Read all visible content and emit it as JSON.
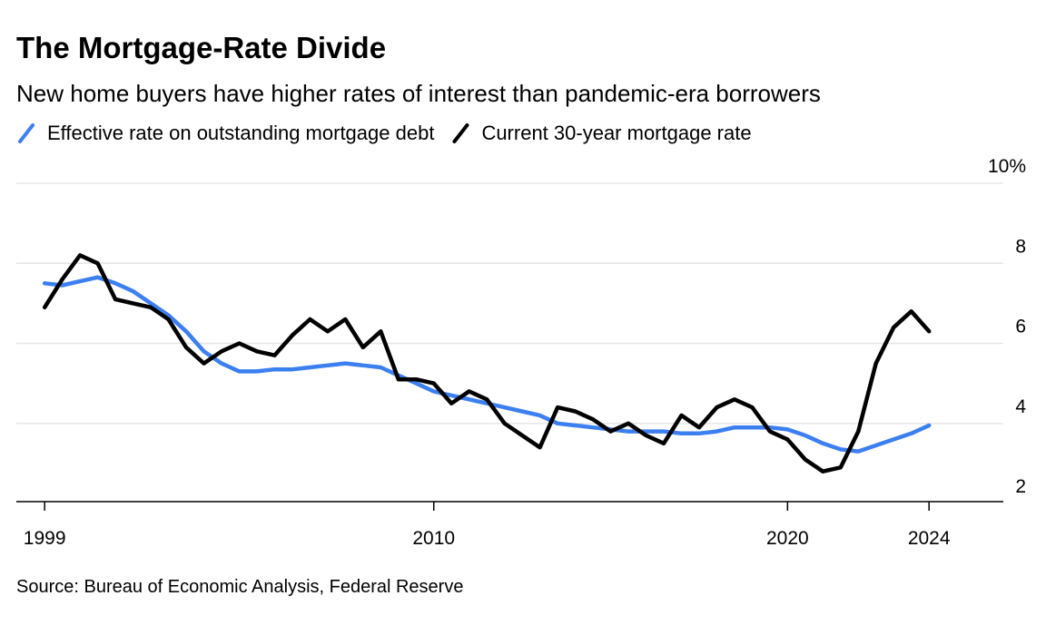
{
  "chart_data": {
    "type": "line",
    "title": "The Mortgage-Rate Divide",
    "subtitle": "New home buyers have higher rates of interest than pandemic-era borrowers",
    "source": "Source: Bureau of Economic Analysis, Federal Reserve",
    "x": [
      1999,
      1999.5,
      2000,
      2000.5,
      2001,
      2001.5,
      2002,
      2002.5,
      2003,
      2003.5,
      2004,
      2004.5,
      2005,
      2005.5,
      2006,
      2006.5,
      2007,
      2007.5,
      2008,
      2008.5,
      2009,
      2009.5,
      2010,
      2010.5,
      2011,
      2011.5,
      2012,
      2012.5,
      2013,
      2013.5,
      2014,
      2014.5,
      2015,
      2015.5,
      2016,
      2016.5,
      2017,
      2017.5,
      2018,
      2018.5,
      2019,
      2019.5,
      2020,
      2020.5,
      2021,
      2021.5,
      2022,
      2022.5,
      2023,
      2023.5,
      2024
    ],
    "series": [
      {
        "name": "Effective rate on outstanding mortgage debt",
        "color": "#3b7ff0",
        "values": [
          7.5,
          7.45,
          7.55,
          7.65,
          7.5,
          7.3,
          7.0,
          6.7,
          6.3,
          5.8,
          5.5,
          5.3,
          5.3,
          5.35,
          5.35,
          5.4,
          5.45,
          5.5,
          5.45,
          5.4,
          5.2,
          5.0,
          4.8,
          4.7,
          4.6,
          4.5,
          4.4,
          4.3,
          4.2,
          4.0,
          3.95,
          3.9,
          3.85,
          3.8,
          3.8,
          3.8,
          3.75,
          3.75,
          3.8,
          3.9,
          3.9,
          3.9,
          3.85,
          3.7,
          3.5,
          3.35,
          3.3,
          3.45,
          3.6,
          3.75,
          3.95
        ]
      },
      {
        "name": "Current 30-year mortgage rate",
        "color": "#000000",
        "values": [
          6.9,
          7.6,
          8.2,
          8.0,
          7.1,
          7.0,
          6.9,
          6.6,
          5.9,
          5.5,
          5.8,
          6.0,
          5.8,
          5.7,
          6.2,
          6.6,
          6.3,
          6.6,
          5.9,
          6.3,
          5.1,
          5.1,
          5.0,
          4.5,
          4.8,
          4.6,
          4.0,
          3.7,
          3.4,
          4.4,
          4.3,
          4.1,
          3.8,
          4.0,
          3.7,
          3.5,
          4.2,
          3.9,
          4.4,
          4.6,
          4.4,
          3.8,
          3.6,
          3.1,
          2.8,
          2.9,
          3.8,
          5.5,
          6.4,
          6.8,
          6.3
        ]
      }
    ],
    "xlim": [
      1998.2,
      2026.1
    ],
    "xticks": [
      1999,
      2010,
      2020,
      2024
    ],
    "ylim": [
      2,
      10
    ],
    "yticks": [
      2,
      4,
      6,
      8,
      {
        "value": 10,
        "label": "10%"
      }
    ],
    "grid": true,
    "legend": "top-left"
  }
}
